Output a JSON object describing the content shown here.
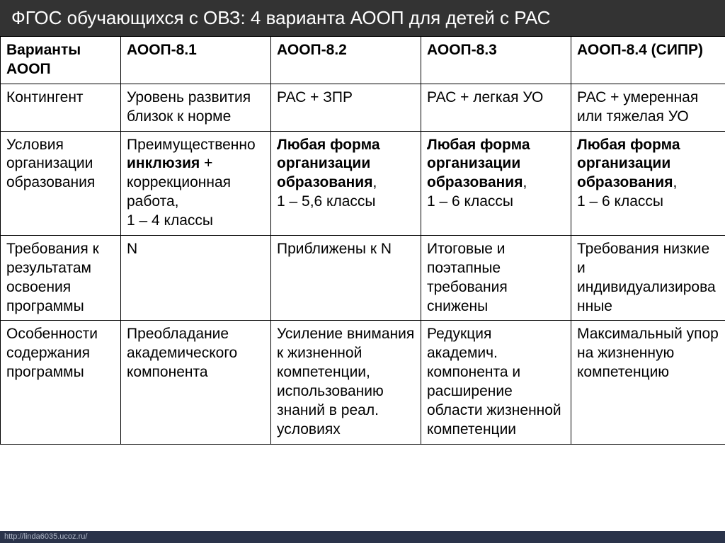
{
  "title": "ФГОС обучающихся с ОВЗ: 4 варианта АООП для детей с РАС",
  "footer_url": "http://linda6035.ucoz.ru/",
  "table": {
    "background_color": "#ffffff",
    "border_color": "#000000",
    "header_bg": "#333333",
    "header_color": "#ffffff",
    "font_size": 21,
    "columns": [
      "Варианты АООП",
      "АООП-8.1",
      "АООП-8.2",
      "АООП-8.3",
      "АООП-8.4 (СИПР)"
    ],
    "rows": [
      {
        "label": "Контингент",
        "cells": [
          {
            "plain": "Уровень развития близок к норме"
          },
          {
            "plain": "РАС + ЗПР"
          },
          {
            "plain": "РАС + легкая УО"
          },
          {
            "plain": "РАС + умеренная или тяжелая УО"
          }
        ]
      },
      {
        "label": "Условия организации образования",
        "cells": [
          {
            "pre": "Преимущественно ",
            "bold": "инклюзия",
            "post": " + коррекционная работа,<br>1 – 4 классы"
          },
          {
            "bold": "Любая форма организации образования",
            "post": ",<br>1 – 5,6 классы"
          },
          {
            "bold": "Любая форма организации образования",
            "post": ",<br>1 – 6 классы"
          },
          {
            "bold": "Любая форма организации образования",
            "post": ",<br>1 – 6 классы"
          }
        ]
      },
      {
        "label": "Требования к результатам освоения программы",
        "cells": [
          {
            "plain": "N"
          },
          {
            "plain": "Приближены к N"
          },
          {
            "plain": "Итоговые и поэтапные требования снижены"
          },
          {
            "plain": "Требования низкие и индивидуализированные"
          }
        ]
      },
      {
        "label": "Особенности содержания программы",
        "cells": [
          {
            "plain": "Преобладание академического компонента"
          },
          {
            "plain": "Усиление внимания к жизненной компетенции, использованию знаний в реал. условиях"
          },
          {
            "plain": "Редукция академич. компонента и расширение области жизненной компетенции"
          },
          {
            "plain": "Максимальный упор на жизненную компетенцию"
          }
        ]
      }
    ]
  }
}
